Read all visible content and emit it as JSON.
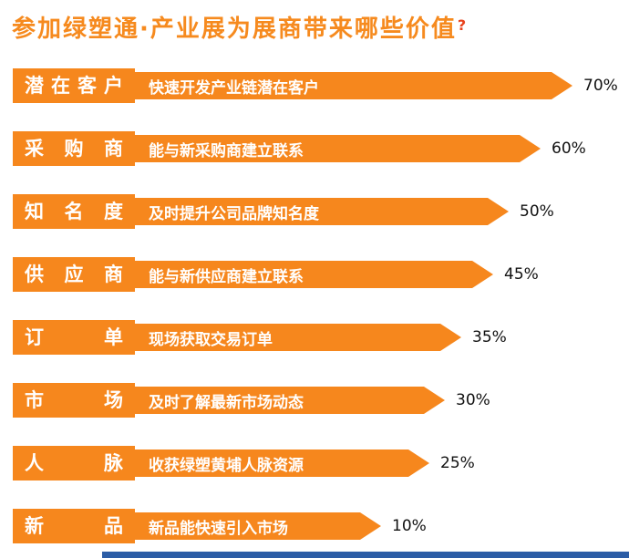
{
  "title": {
    "text": "参加绿塑通·产业展为展商带来哪些价值",
    "question_mark": "?"
  },
  "colors": {
    "accent_orange": "#f6871d",
    "title_orange": "#f68a1e",
    "footer_blue": "#2c5da6",
    "percent_text": "#111111",
    "bar_text": "#ffffff"
  },
  "chart_data": {
    "type": "bar",
    "orientation": "horizontal",
    "title": "参加绿塑通·产业展为展商带来哪些价值?",
    "unit": "%",
    "xlim": [
      0,
      100
    ],
    "bar_color": "#f6871d",
    "legend": "none",
    "grid": false,
    "categories": [
      "潜在客户",
      "采购商",
      "知名度",
      "供应商",
      "订单",
      "市场",
      "人脉",
      "新品"
    ],
    "values": [
      70,
      60,
      50,
      45,
      35,
      30,
      25,
      10
    ],
    "rows": [
      {
        "category": "潜在客户",
        "description": "快速开发产业链潜在客户",
        "value": 70,
        "value_label": "70%"
      },
      {
        "category": "采购商",
        "description": "能与新采购商建立联系",
        "value": 60,
        "value_label": "60%"
      },
      {
        "category": "知名度",
        "description": "及时提升公司品牌知名度",
        "value": 50,
        "value_label": "50%"
      },
      {
        "category": "供应商",
        "description": "能与新供应商建立联系",
        "value": 45,
        "value_label": "45%"
      },
      {
        "category": "订单",
        "description": "现场获取交易订单",
        "value": 35,
        "value_label": "35%"
      },
      {
        "category": "市场",
        "description": "及时了解最新市场动态",
        "value": 30,
        "value_label": "30%"
      },
      {
        "category": "人脉",
        "description": "收获绿塑黄埔人脉资源",
        "value": 25,
        "value_label": "25%"
      },
      {
        "category": "新品",
        "description": "新品能快速引入市场",
        "value": 10,
        "value_label": "10%"
      }
    ]
  }
}
